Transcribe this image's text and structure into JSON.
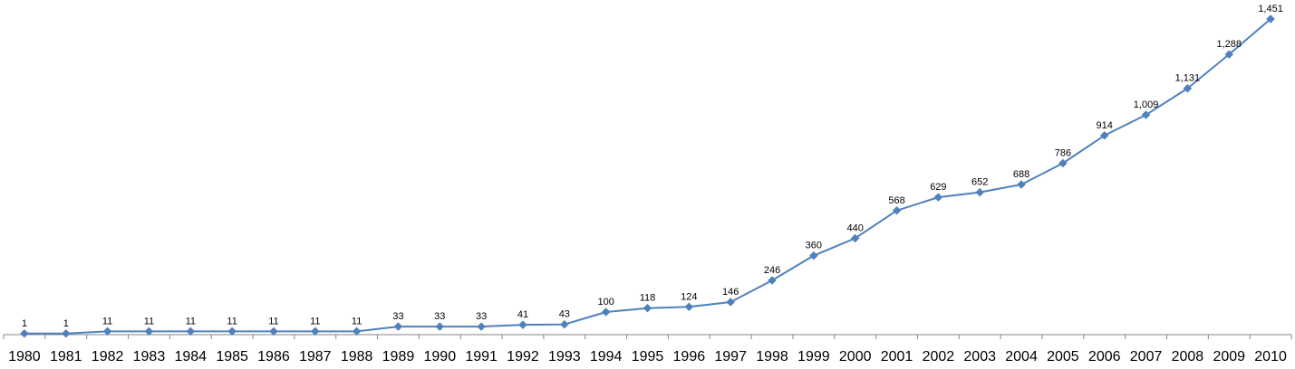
{
  "chart_data": {
    "type": "line",
    "categories": [
      "1980",
      "1981",
      "1982",
      "1983",
      "1984",
      "1985",
      "1986",
      "1987",
      "1988",
      "1989",
      "1990",
      "1991",
      "1992",
      "1993",
      "1994",
      "1995",
      "1996",
      "1997",
      "1998",
      "1999",
      "2000",
      "2001",
      "2002",
      "2003",
      "2004",
      "2005",
      "2006",
      "2007",
      "2008",
      "2009",
      "2010"
    ],
    "series": [
      {
        "values": [
          1,
          1,
          11,
          11,
          11,
          11,
          11,
          11,
          11,
          33,
          33,
          33,
          41,
          43,
          100,
          118,
          124,
          146,
          246,
          360,
          440,
          568,
          629,
          652,
          688,
          786,
          914,
          1009,
          1131,
          1288,
          1451
        ],
        "data_labels": [
          "1",
          "1",
          "11",
          "11",
          "11",
          "11",
          "11",
          "11",
          "11",
          "33",
          "33",
          "33",
          "41",
          "43",
          "100",
          "118",
          "124",
          "146",
          "246",
          "360",
          "440",
          "568",
          "629",
          "652",
          "688",
          "786",
          "914",
          "1,009",
          "1,131",
          "1,288",
          "1,451"
        ],
        "color": "#4F81BD"
      }
    ],
    "ylim": [
      0,
      1451
    ],
    "grid": false,
    "legend": "none",
    "axis_color": "#868686"
  }
}
